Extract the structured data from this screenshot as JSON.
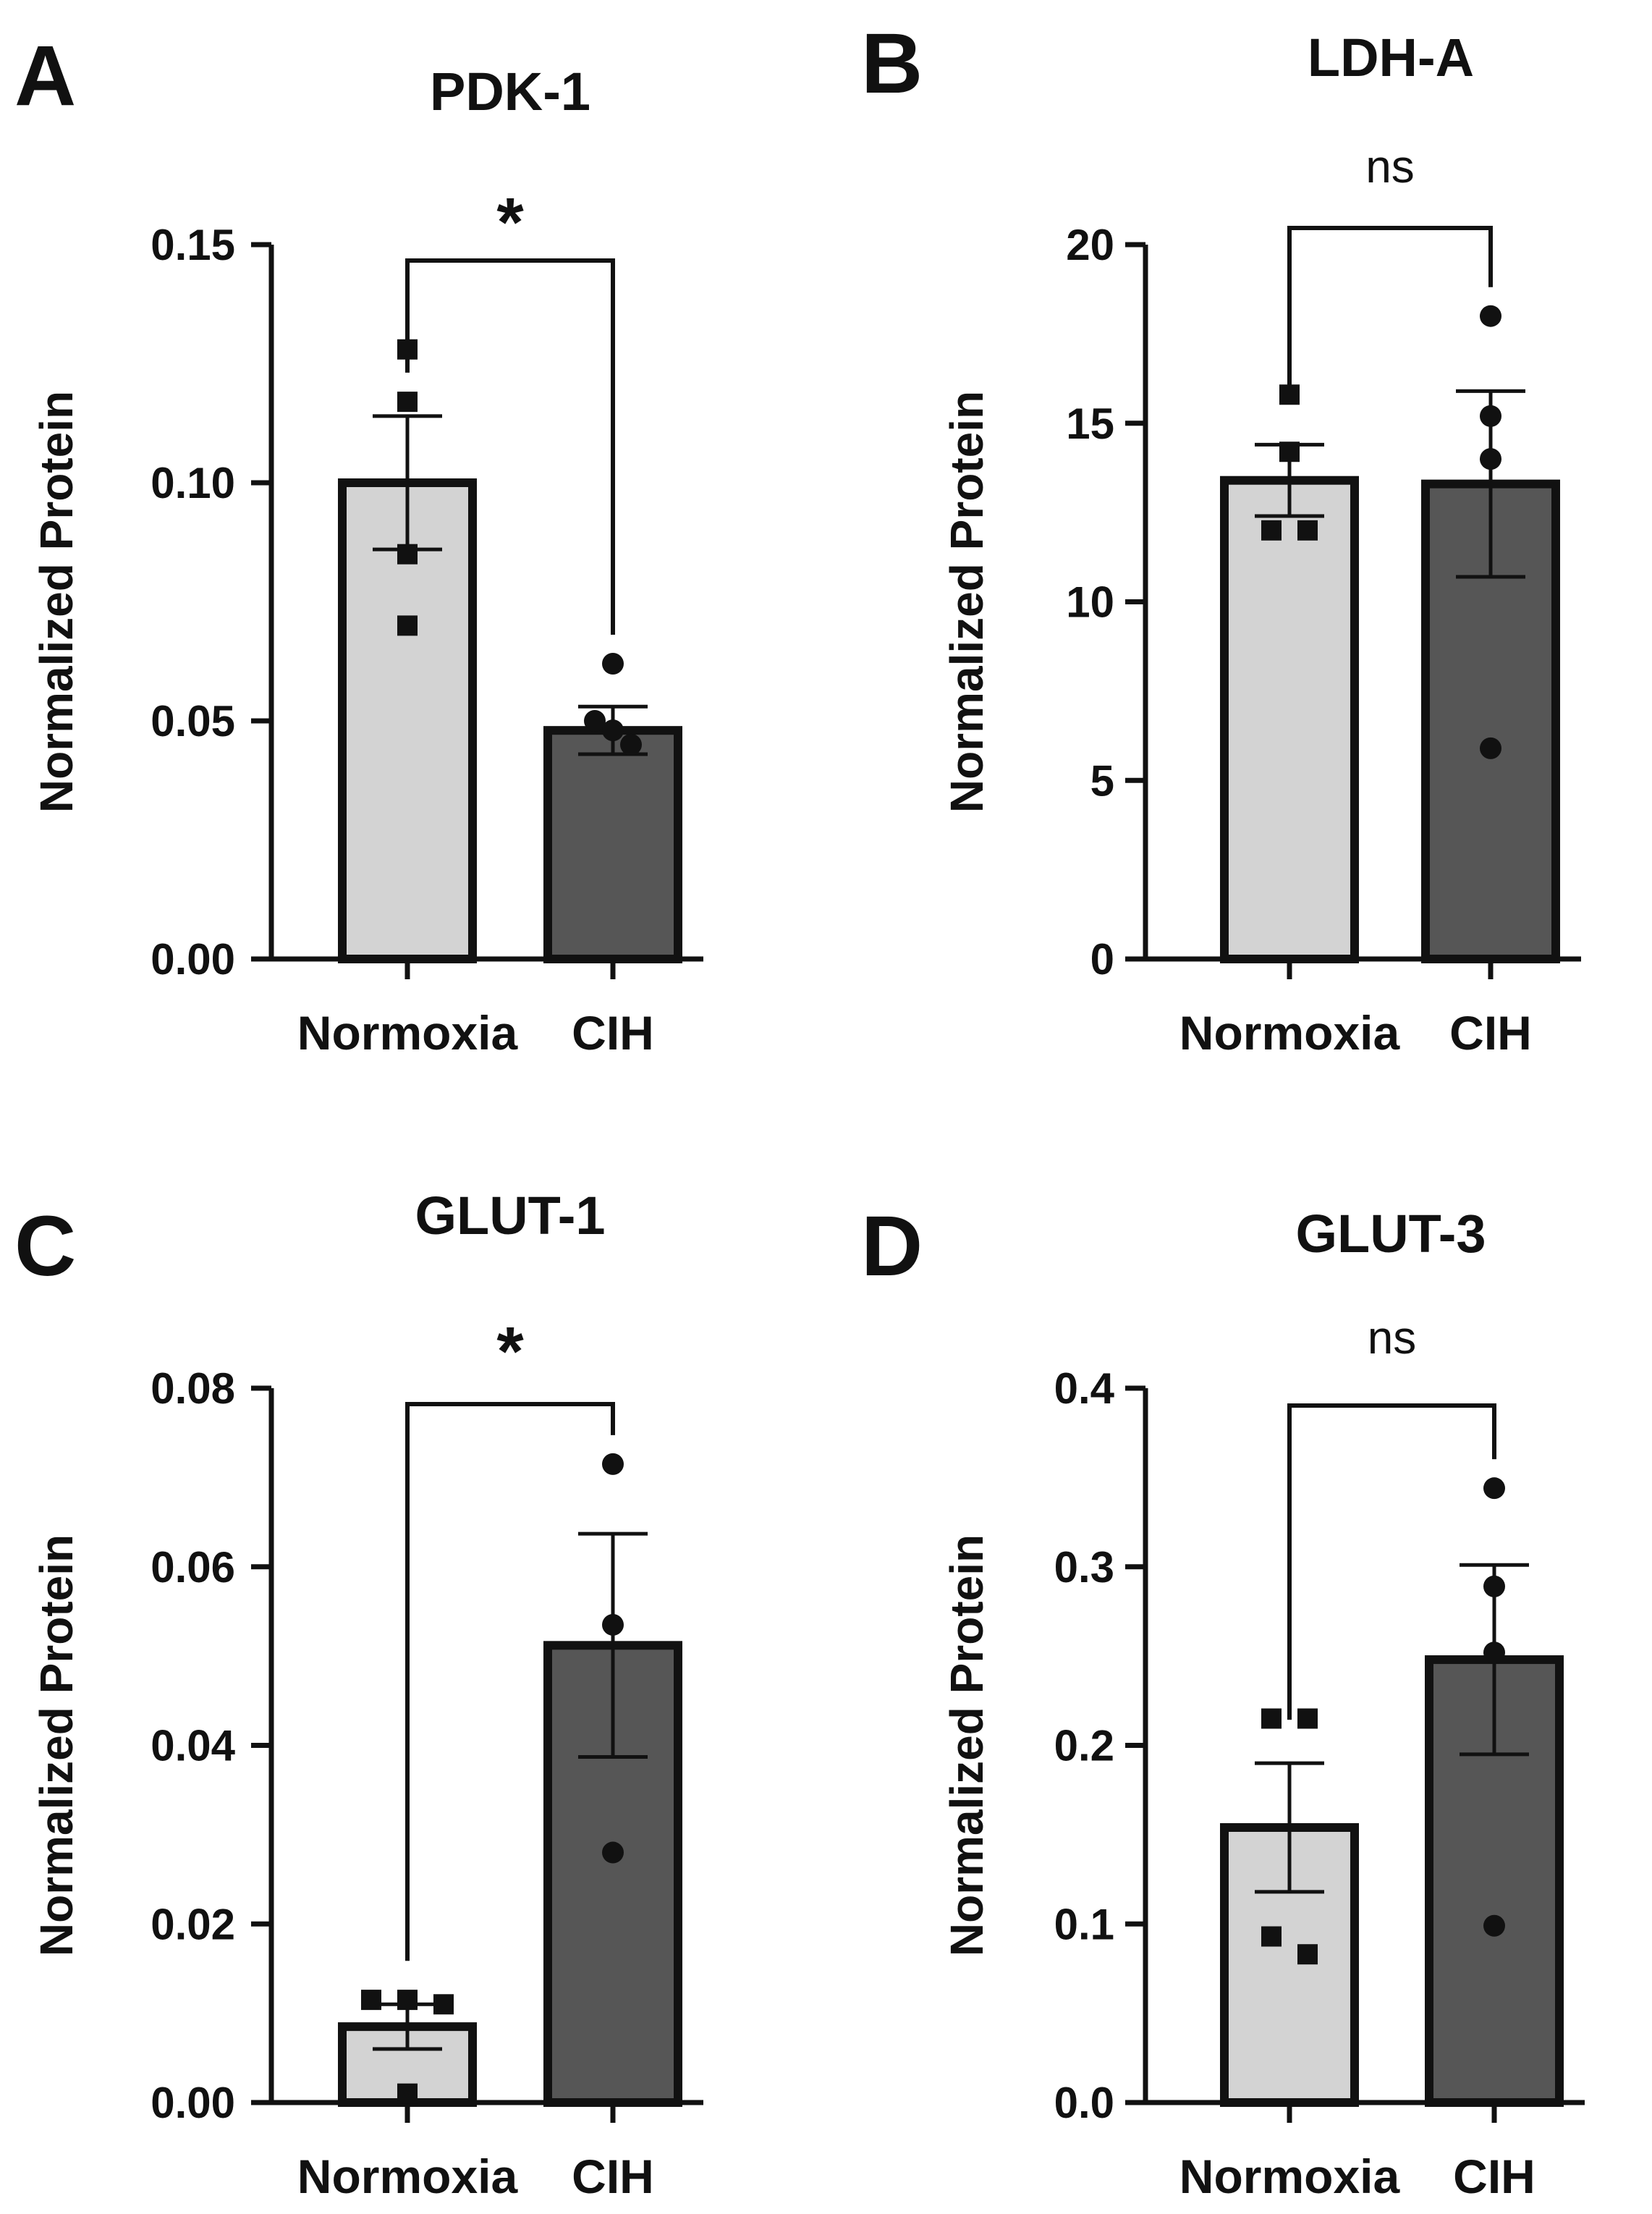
{
  "colors": {
    "normoxia_fill": "#d3d3d3",
    "cih_fill": "#565656",
    "stroke": "#111111"
  },
  "chart_data": [
    {
      "panel": "A",
      "type": "bar",
      "title": "PDK-1",
      "ylabel": "Normalized Protein",
      "xlabel": "",
      "categories": [
        "Normoxia",
        "CIH"
      ],
      "ylim": [
        0,
        0.15
      ],
      "yticks": [
        0,
        0.05,
        0.1,
        0.15
      ],
      "ytick_labels": [
        "0.00",
        "0.05",
        "0.10",
        "0.15"
      ],
      "series": [
        {
          "name": "Normoxia",
          "mean": 0.1,
          "sem": 0.014,
          "marker": "square",
          "points": [
            0.128,
            0.117,
            0.085,
            0.07
          ]
        },
        {
          "name": "CIH",
          "mean": 0.048,
          "sem": 0.005,
          "marker": "circle",
          "points": [
            0.062,
            0.05,
            0.048,
            0.045
          ]
        }
      ],
      "significance": "*"
    },
    {
      "panel": "B",
      "type": "bar",
      "title": "LDH-A",
      "ylabel": "Normalized Protein",
      "xlabel": "",
      "categories": [
        "Normoxia",
        "CIH"
      ],
      "ylim": [
        0,
        20
      ],
      "yticks": [
        0,
        5,
        10,
        15,
        20
      ],
      "ytick_labels": [
        "0",
        "5",
        "10",
        "15",
        "20"
      ],
      "series": [
        {
          "name": "Normoxia",
          "mean": 13.4,
          "sem": 1.0,
          "marker": "square",
          "points": [
            15.8,
            14.2,
            12.0,
            12.0
          ]
        },
        {
          "name": "CIH",
          "mean": 13.3,
          "sem": 2.6,
          "marker": "circle",
          "points": [
            18.0,
            15.2,
            14.0,
            5.9
          ]
        }
      ],
      "significance": "ns"
    },
    {
      "panel": "C",
      "type": "bar",
      "title": "GLUT-1",
      "ylabel": "Normalized Protein",
      "xlabel": "",
      "categories": [
        "Normoxia",
        "CIH"
      ],
      "ylim": [
        0,
        0.08
      ],
      "yticks": [
        0,
        0.02,
        0.04,
        0.06,
        0.08
      ],
      "ytick_labels": [
        "0.00",
        "0.02",
        "0.04",
        "0.06",
        "0.08"
      ],
      "series": [
        {
          "name": "Normoxia",
          "mean": 0.0085,
          "sem": 0.0025,
          "marker": "square",
          "points": [
            0.0115,
            0.0115,
            0.011,
            0.001
          ]
        },
        {
          "name": "CIH",
          "mean": 0.0512,
          "sem": 0.0125,
          "marker": "circle",
          "points": [
            0.0715,
            0.0535,
            0.028
          ]
        }
      ],
      "significance": "*"
    },
    {
      "panel": "D",
      "type": "bar",
      "title": "GLUT-3",
      "ylabel": "Normalized Protein",
      "xlabel": "",
      "categories": [
        "Normoxia",
        "CIH"
      ],
      "ylim": [
        0,
        0.4
      ],
      "yticks": [
        0,
        0.1,
        0.2,
        0.3,
        0.4
      ],
      "ytick_labels": [
        "0.0",
        "0.1",
        "0.2",
        "0.3",
        "0.4"
      ],
      "series": [
        {
          "name": "Normoxia",
          "mean": 0.154,
          "sem": 0.036,
          "marker": "square",
          "points": [
            0.215,
            0.215,
            0.093,
            0.083
          ]
        },
        {
          "name": "CIH",
          "mean": 0.248,
          "sem": 0.053,
          "marker": "circle",
          "points": [
            0.344,
            0.289,
            0.252,
            0.099
          ]
        }
      ],
      "significance": "ns"
    }
  ]
}
